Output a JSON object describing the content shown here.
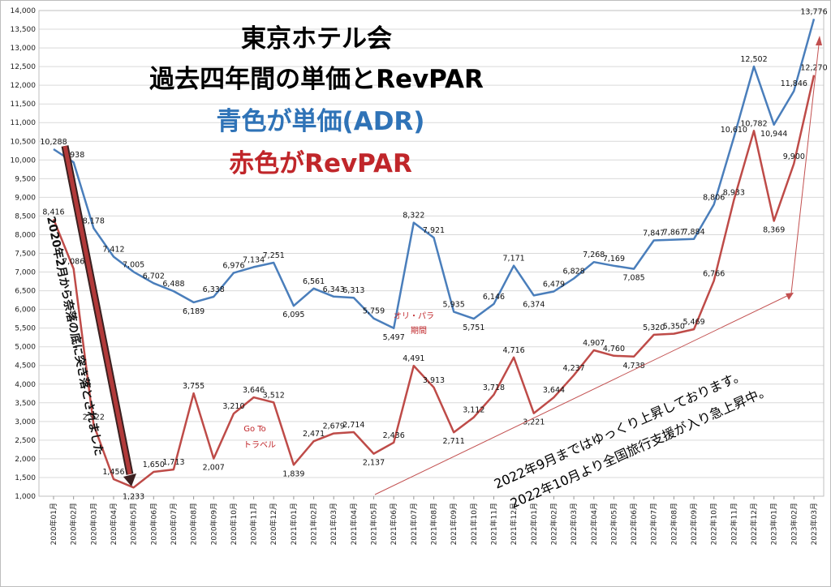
{
  "chart_data": {
    "type": "line",
    "title": [
      "東京ホテル会",
      "過去四年間の単価とRevPAR"
    ],
    "subtitle_adr": "青色が単価(ADR)",
    "subtitle_revpar": "赤色がRevPAR",
    "categories": [
      "2020年01月",
      "2020年02月",
      "2020年03月",
      "2020年04月",
      "2020年05月",
      "2020年06月",
      "2020年07月",
      "2020年08月",
      "2020年09月",
      "2020年10月",
      "2020年11月",
      "2020年12月",
      "2021年01月",
      "2021年02月",
      "2021年03月",
      "2021年04月",
      "2021年05月",
      "2021年06月",
      "2021年07月",
      "2021年08月",
      "2021年09月",
      "2021年10月",
      "2021年11月",
      "2021年12月",
      "2022年01月",
      "2022年02月",
      "2022年03月",
      "2022年04月",
      "2022年05月",
      "2022年06月",
      "2022年07月",
      "2022年08月",
      "2022年09月",
      "2022年10月",
      "2022年11月",
      "2022年12月",
      "2023年01月",
      "2023年02月",
      "2023年03月"
    ],
    "series": [
      {
        "name": "単価(ADR)",
        "color": "#4a7ebb",
        "values": [
          10288,
          9938,
          8178,
          7412,
          7005,
          6702,
          6488,
          6189,
          6338,
          6976,
          7134,
          7251,
          6095,
          6561,
          6343,
          6313,
          5759,
          5497,
          8322,
          7921,
          5935,
          5751,
          6146,
          7171,
          6374,
          6479,
          6828,
          7268,
          7169,
          7085,
          7847,
          7867,
          7884,
          8806,
          10610,
          12502,
          10944,
          11846,
          13776
        ],
        "labels": [
          "10,288",
          "9,938",
          "8,178",
          "7,412",
          "7,005",
          "6,702",
          "6,488",
          "6,189",
          "6,338",
          "6,976",
          "7,134",
          "7,251",
          "6,095",
          "6,561",
          "6,343",
          "6,313",
          "5,759",
          "5,497",
          "8,322",
          "7,921",
          "5,935",
          "5,751",
          "6,146",
          "7,171",
          "6,374",
          "6,479",
          "6,828",
          "7,268",
          "7,169",
          "7,085",
          "7,847",
          "7,867",
          "7,884",
          "8,806",
          "10,610",
          "12,502",
          "10,944",
          "11,846",
          "13,776"
        ]
      },
      {
        "name": "RevPAR",
        "color": "#be4b48",
        "values": [
          8416,
          7086,
          2922,
          1456,
          1233,
          1650,
          1713,
          3755,
          2007,
          3210,
          3646,
          3512,
          1839,
          2471,
          2679,
          2714,
          2137,
          2436,
          4491,
          3913,
          2711,
          3112,
          3718,
          4716,
          3221,
          3644,
          4237,
          4907,
          4760,
          4738,
          5320,
          5350,
          5469,
          6766,
          8933,
          10782,
          8369,
          9900,
          12270
        ],
        "labels": [
          "8,416",
          "7,086",
          "2,922",
          "1,456",
          "1,233",
          "1,650",
          "1,713",
          "3,755",
          "2,007",
          "3,210",
          "3,646",
          "3,512",
          "1,839",
          "2,471",
          "2,679",
          "2,714",
          "2,137",
          "2,436",
          "4,491",
          "3,913",
          "2,711",
          "3,112",
          "3,718",
          "4,716",
          "3,221",
          "3,644",
          "4,237",
          "4,907",
          "4,760",
          "4,738",
          "5,320",
          "5,350",
          "5,469",
          "6,766",
          "8,933",
          "10,782",
          "8,369",
          "9,900",
          "12,270"
        ]
      }
    ],
    "yticks": [
      "1,000",
      "1,500",
      "2,000",
      "2,500",
      "3,000",
      "3,500",
      "4,000",
      "4,500",
      "5,000",
      "5,500",
      "6,000",
      "6,500",
      "7,000",
      "7,500",
      "8,000",
      "8,500",
      "9,000",
      "9,500",
      "10,000",
      "10,500",
      "11,000",
      "11,500",
      "12,000",
      "12,500",
      "13,000",
      "13,500",
      "14,000"
    ],
    "ylim": [
      1000,
      14000
    ],
    "grid": true,
    "annotations": {
      "crash": "2020年2月から奈落の底に突き落とされました",
      "goto": [
        "Go To",
        "トラベル"
      ],
      "olypara": [
        "オリ・パラ",
        "期間"
      ],
      "rise1": "2022年9月まではゆっくり上昇しております。",
      "rise2": "2022年10月より全国旅行支援が入り急上昇中。"
    }
  }
}
